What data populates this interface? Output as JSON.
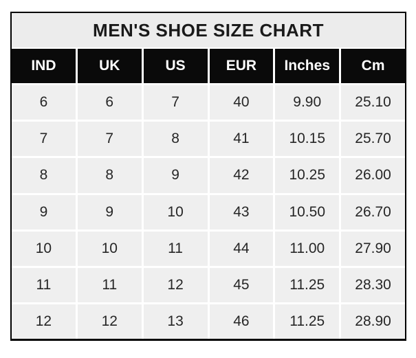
{
  "chart_data": {
    "type": "table",
    "title": "MEN'S SHOE SIZE CHART",
    "columns": [
      "IND",
      "UK",
      "US",
      "EUR",
      "Inches",
      "Cm"
    ],
    "rows": [
      [
        "6",
        "6",
        "7",
        "40",
        "9.90",
        "25.10"
      ],
      [
        "7",
        "7",
        "8",
        "41",
        "10.15",
        "25.70"
      ],
      [
        "8",
        "8",
        "9",
        "42",
        "10.25",
        "26.00"
      ],
      [
        "9",
        "9",
        "10",
        "43",
        "10.50",
        "26.70"
      ],
      [
        "10",
        "10",
        "11",
        "44",
        "11.00",
        "27.90"
      ],
      [
        "11",
        "11",
        "12",
        "45",
        "11.25",
        "28.30"
      ],
      [
        "12",
        "12",
        "13",
        "46",
        "11.25",
        "28.90"
      ]
    ]
  },
  "colors": {
    "border": "#000000",
    "grid_line": "#ffffff",
    "title_bg": "#ececec",
    "title_text": "#1a1a1a",
    "header_bg": "#0a0a0a",
    "header_text": "#ffffff",
    "cell_bg": "#efefef",
    "cell_text": "#262626"
  }
}
